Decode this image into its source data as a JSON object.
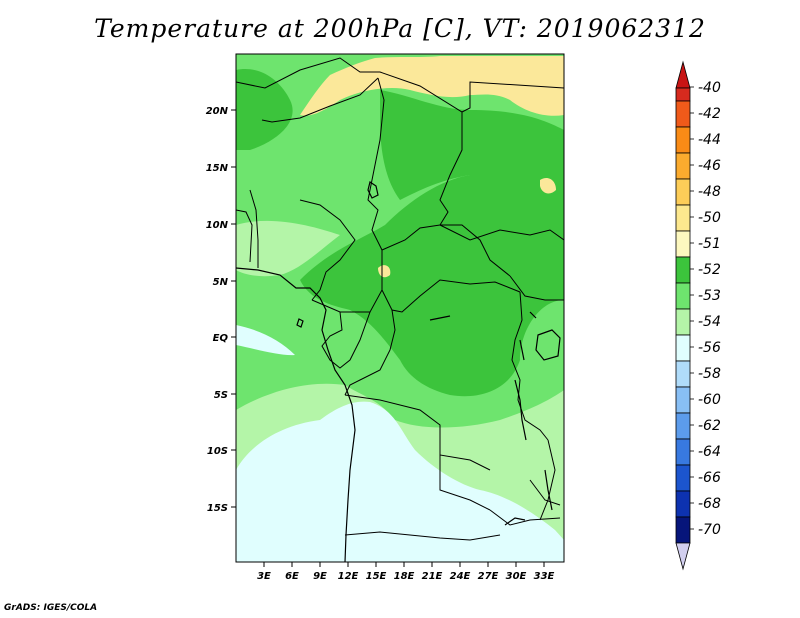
{
  "title": "Temperature at 200hPa [C], VT: 2019062312",
  "credit": "GrADS: IGES/COLA",
  "map": {
    "lat_labels": [
      "20N",
      "15N",
      "10N",
      "5N",
      "EQ",
      "5S",
      "10S",
      "15S"
    ],
    "lon_labels": [
      "3E",
      "6E",
      "9E",
      "12E",
      "15E",
      "18E",
      "21E",
      "24E",
      "27E",
      "30E",
      "33E"
    ]
  },
  "colorbar": {
    "levels": [
      {
        "label": "-40",
        "color": "#d62a1e"
      },
      {
        "label": "-42",
        "color": "#f05a1a"
      },
      {
        "label": "-44",
        "color": "#f98b16"
      },
      {
        "label": "-46",
        "color": "#fbab2e"
      },
      {
        "label": "-48",
        "color": "#fdcd58"
      },
      {
        "label": "-50",
        "color": "#fde88e"
      },
      {
        "label": "-51",
        "color": "#fdf8bf"
      },
      {
        "label": "-52",
        "color": "#3cc43c"
      },
      {
        "label": "-53",
        "color": "#6ee46e"
      },
      {
        "label": "-54",
        "color": "#b4f5a8"
      },
      {
        "label": "-56",
        "color": "#e0fefe"
      },
      {
        "label": "-58",
        "color": "#b0dcfa"
      },
      {
        "label": "-60",
        "color": "#88bff5"
      },
      {
        "label": "-62",
        "color": "#5c9cec"
      },
      {
        "label": "-64",
        "color": "#3879e0"
      },
      {
        "label": "-66",
        "color": "#1c55ce"
      },
      {
        "label": "-68",
        "color": "#0d32b0"
      },
      {
        "label": "-70",
        "color": "#06157a"
      }
    ],
    "below_color": "#d2cfef",
    "above_color": "#c81414"
  },
  "colors": {
    "warm_yellow": "#fbe89a",
    "green_52": "#3cc43c",
    "green_53": "#6ee46e",
    "green_54": "#b4f5a8",
    "cyan_56": "#e0fefe"
  }
}
